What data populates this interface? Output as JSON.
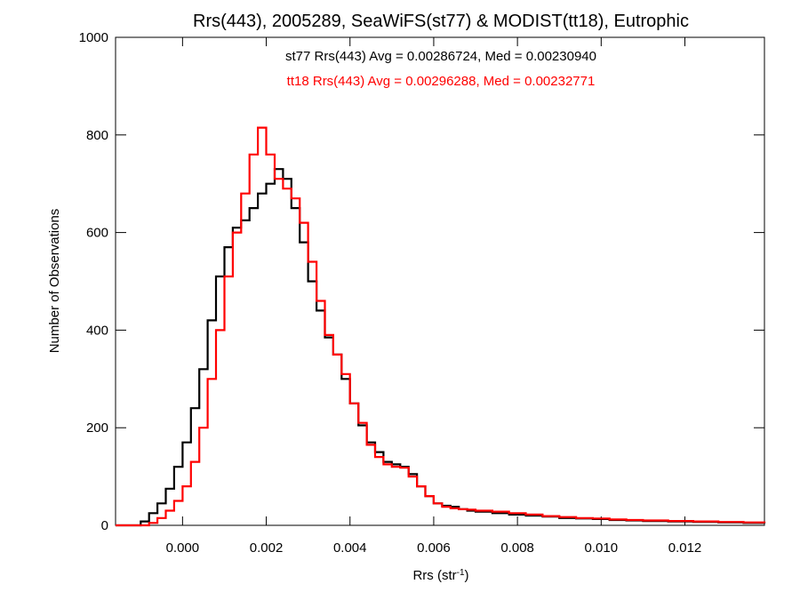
{
  "chart_data": {
    "type": "histogram",
    "title": "Rrs(443), 2005289, SeaWiFS(st77) & MODIST(tt18), Eutrophic",
    "xlabel": "Rrs (str",
    "xlabel_sup": "-1",
    "xlabel_close": ")",
    "ylabel": "Number of Observations",
    "xlim": [
      -0.0016,
      0.0139
    ],
    "ylim": [
      0,
      1000
    ],
    "xticks": [
      0.0,
      0.002,
      0.004,
      0.006,
      0.008,
      0.01,
      0.012
    ],
    "xtick_labels": [
      "0.000",
      "0.002",
      "0.004",
      "0.006",
      "0.008",
      "0.010",
      "0.012"
    ],
    "yticks": [
      0,
      200,
      400,
      600,
      800,
      1000
    ],
    "ytick_labels": [
      "0",
      "200",
      "400",
      "600",
      "800",
      "1000"
    ],
    "annotations": [
      {
        "text": "st77 Rrs(443) Avg = 0.00286724, Med = 0.00230940",
        "color": "#000000"
      },
      {
        "text": "tt18 Rrs(443) Avg = 0.00296288, Med = 0.00232771",
        "color": "#ff0000"
      }
    ],
    "series": [
      {
        "color": "#000000",
        "points": [
          [
            -0.0016,
            0
          ],
          [
            -0.0012,
            0
          ],
          [
            -0.001,
            8
          ],
          [
            -0.0008,
            25
          ],
          [
            -0.0006,
            45
          ],
          [
            -0.0004,
            75
          ],
          [
            -0.0002,
            120
          ],
          [
            0.0,
            170
          ],
          [
            0.0002,
            240
          ],
          [
            0.0004,
            320
          ],
          [
            0.0006,
            420
          ],
          [
            0.0008,
            510
          ],
          [
            0.001,
            570
          ],
          [
            0.0012,
            610
          ],
          [
            0.0014,
            625
          ],
          [
            0.0016,
            650
          ],
          [
            0.0018,
            680
          ],
          [
            0.002,
            700
          ],
          [
            0.0022,
            730
          ],
          [
            0.0024,
            710
          ],
          [
            0.0026,
            650
          ],
          [
            0.0028,
            580
          ],
          [
            0.003,
            500
          ],
          [
            0.0032,
            440
          ],
          [
            0.0034,
            385
          ],
          [
            0.0036,
            350
          ],
          [
            0.0038,
            300
          ],
          [
            0.004,
            250
          ],
          [
            0.0042,
            205
          ],
          [
            0.0044,
            170
          ],
          [
            0.0046,
            150
          ],
          [
            0.0048,
            130
          ],
          [
            0.005,
            125
          ],
          [
            0.0052,
            120
          ],
          [
            0.0054,
            105
          ],
          [
            0.0056,
            80
          ],
          [
            0.0058,
            60
          ],
          [
            0.006,
            45
          ],
          [
            0.0062,
            40
          ],
          [
            0.0064,
            38
          ],
          [
            0.0066,
            33
          ],
          [
            0.0068,
            30
          ],
          [
            0.007,
            28
          ],
          [
            0.0074,
            25
          ],
          [
            0.0078,
            22
          ],
          [
            0.0082,
            20
          ],
          [
            0.0086,
            18
          ],
          [
            0.009,
            15
          ],
          [
            0.0094,
            14
          ],
          [
            0.0098,
            13
          ],
          [
            0.0102,
            11
          ],
          [
            0.0106,
            10
          ],
          [
            0.011,
            9
          ],
          [
            0.0116,
            8
          ],
          [
            0.0122,
            7
          ],
          [
            0.0128,
            6
          ],
          [
            0.0134,
            5
          ],
          [
            0.0139,
            4
          ]
        ]
      },
      {
        "color": "#ff0000",
        "points": [
          [
            -0.0016,
            0
          ],
          [
            -0.001,
            0
          ],
          [
            -0.0008,
            5
          ],
          [
            -0.0006,
            15
          ],
          [
            -0.0004,
            30
          ],
          [
            -0.0002,
            50
          ],
          [
            0.0,
            80
          ],
          [
            0.0002,
            130
          ],
          [
            0.0004,
            200
          ],
          [
            0.0006,
            300
          ],
          [
            0.0008,
            400
          ],
          [
            0.001,
            510
          ],
          [
            0.0012,
            600
          ],
          [
            0.0014,
            680
          ],
          [
            0.0016,
            760
          ],
          [
            0.0018,
            815
          ],
          [
            0.002,
            760
          ],
          [
            0.0022,
            710
          ],
          [
            0.0024,
            690
          ],
          [
            0.0026,
            670
          ],
          [
            0.0028,
            620
          ],
          [
            0.003,
            540
          ],
          [
            0.0032,
            460
          ],
          [
            0.0034,
            390
          ],
          [
            0.0036,
            350
          ],
          [
            0.0038,
            310
          ],
          [
            0.004,
            250
          ],
          [
            0.0042,
            210
          ],
          [
            0.0044,
            165
          ],
          [
            0.0046,
            140
          ],
          [
            0.0048,
            125
          ],
          [
            0.005,
            120
          ],
          [
            0.0052,
            118
          ],
          [
            0.0054,
            100
          ],
          [
            0.0056,
            80
          ],
          [
            0.0058,
            60
          ],
          [
            0.006,
            45
          ],
          [
            0.0062,
            38
          ],
          [
            0.0064,
            35
          ],
          [
            0.0066,
            33
          ],
          [
            0.0068,
            32
          ],
          [
            0.007,
            30
          ],
          [
            0.0074,
            28
          ],
          [
            0.0078,
            25
          ],
          [
            0.0082,
            22
          ],
          [
            0.0086,
            19
          ],
          [
            0.009,
            17
          ],
          [
            0.0094,
            15
          ],
          [
            0.0098,
            14
          ],
          [
            0.0102,
            12
          ],
          [
            0.0106,
            11
          ],
          [
            0.011,
            10
          ],
          [
            0.0116,
            9
          ],
          [
            0.0122,
            8
          ],
          [
            0.0128,
            7
          ],
          [
            0.0134,
            6
          ],
          [
            0.0139,
            5
          ]
        ]
      }
    ]
  }
}
